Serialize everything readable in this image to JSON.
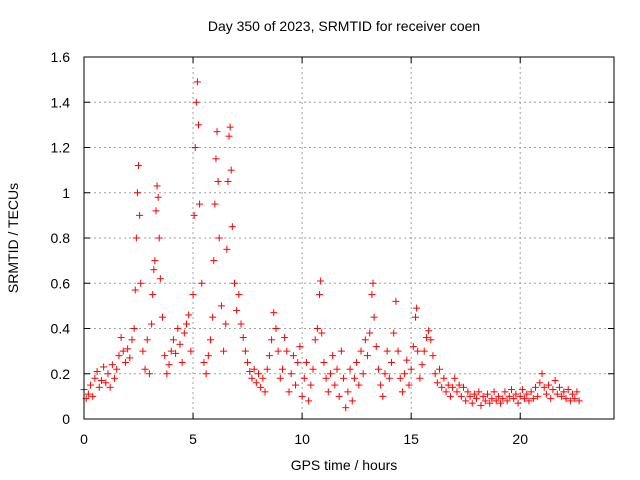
{
  "chart_data": {
    "type": "scatter",
    "title": "Day 350 of 2023, SRMTID for receiver coen",
    "xlabel": "GPS time / hours",
    "ylabel": "SRMTID / TECUs",
    "xlim": [
      0,
      24.3
    ],
    "ylim": [
      0,
      1.6
    ],
    "xticks": [
      0,
      5,
      10,
      15,
      20
    ],
    "xtick_labels": [
      "0",
      "5",
      "10",
      "15",
      "20"
    ],
    "yticks": [
      0,
      0.2,
      0.4,
      0.6,
      0.8,
      1.0,
      1.2,
      1.4,
      1.6
    ],
    "ytick_labels": [
      "0",
      "0.2",
      "0.4",
      "0.6",
      "0.8",
      "1",
      "1.2",
      "1.4",
      "1.6"
    ],
    "grid": true,
    "marker": "+",
    "color": "#ff0000",
    "series": [
      {
        "name": "SRMTID",
        "points": [
          [
            0.0,
            0.13
          ],
          [
            0.1,
            0.09
          ],
          [
            0.2,
            0.11
          ],
          [
            0.3,
            0.15
          ],
          [
            0.4,
            0.1
          ],
          [
            0.5,
            0.18
          ],
          [
            0.6,
            0.21
          ],
          [
            0.7,
            0.14
          ],
          [
            0.8,
            0.17
          ],
          [
            0.9,
            0.23
          ],
          [
            1.0,
            0.16
          ],
          [
            1.1,
            0.2
          ],
          [
            1.2,
            0.14
          ],
          [
            1.3,
            0.24
          ],
          [
            1.4,
            0.18
          ],
          [
            1.5,
            0.22
          ],
          [
            1.6,
            0.28
          ],
          [
            1.7,
            0.36
          ],
          [
            1.8,
            0.3
          ],
          [
            1.9,
            0.25
          ],
          [
            2.0,
            0.31
          ],
          [
            2.1,
            0.27
          ],
          [
            2.2,
            0.35
          ],
          [
            2.3,
            0.4
          ],
          [
            2.35,
            0.57
          ],
          [
            2.4,
            0.8
          ],
          [
            2.45,
            1.0
          ],
          [
            2.5,
            1.12
          ],
          [
            2.55,
            0.9
          ],
          [
            2.6,
            0.6
          ],
          [
            2.7,
            0.3
          ],
          [
            2.8,
            0.22
          ],
          [
            2.9,
            0.35
          ],
          [
            3.0,
            0.2
          ],
          [
            3.1,
            0.42
          ],
          [
            3.15,
            0.55
          ],
          [
            3.2,
            0.66
          ],
          [
            3.25,
            0.7
          ],
          [
            3.3,
            0.92
          ],
          [
            3.35,
            1.03
          ],
          [
            3.4,
            0.98
          ],
          [
            3.45,
            0.8
          ],
          [
            3.5,
            0.62
          ],
          [
            3.6,
            0.45
          ],
          [
            3.7,
            0.28
          ],
          [
            3.8,
            0.2
          ],
          [
            3.9,
            0.24
          ],
          [
            4.0,
            0.3
          ],
          [
            4.1,
            0.35
          ],
          [
            4.2,
            0.29
          ],
          [
            4.3,
            0.4
          ],
          [
            4.4,
            0.33
          ],
          [
            4.5,
            0.25
          ],
          [
            4.6,
            0.38
          ],
          [
            4.7,
            0.42
          ],
          [
            4.8,
            0.46
          ],
          [
            4.9,
            0.3
          ],
          [
            5.0,
            0.55
          ],
          [
            5.05,
            0.9
          ],
          [
            5.1,
            1.2
          ],
          [
            5.15,
            1.4
          ],
          [
            5.2,
            1.49
          ],
          [
            5.25,
            1.3
          ],
          [
            5.3,
            0.95
          ],
          [
            5.4,
            0.6
          ],
          [
            5.5,
            0.25
          ],
          [
            5.6,
            0.2
          ],
          [
            5.7,
            0.28
          ],
          [
            5.8,
            0.35
          ],
          [
            5.9,
            0.45
          ],
          [
            5.95,
            0.7
          ],
          [
            6.0,
            0.95
          ],
          [
            6.05,
            1.15
          ],
          [
            6.1,
            1.27
          ],
          [
            6.15,
            1.05
          ],
          [
            6.2,
            0.8
          ],
          [
            6.3,
            0.5
          ],
          [
            6.4,
            0.3
          ],
          [
            6.5,
            0.42
          ],
          [
            6.55,
            0.75
          ],
          [
            6.6,
            1.05
          ],
          [
            6.65,
            1.25
          ],
          [
            6.7,
            1.29
          ],
          [
            6.75,
            1.1
          ],
          [
            6.8,
            0.85
          ],
          [
            6.9,
            0.6
          ],
          [
            7.0,
            0.48
          ],
          [
            7.1,
            0.55
          ],
          [
            7.2,
            0.42
          ],
          [
            7.3,
            0.36
          ],
          [
            7.4,
            0.3
          ],
          [
            7.5,
            0.25
          ],
          [
            7.6,
            0.21
          ],
          [
            7.7,
            0.18
          ],
          [
            7.8,
            0.22
          ],
          [
            7.9,
            0.16
          ],
          [
            8.0,
            0.2
          ],
          [
            8.1,
            0.14
          ],
          [
            8.2,
            0.18
          ],
          [
            8.3,
            0.12
          ],
          [
            8.4,
            0.22
          ],
          [
            8.5,
            0.28
          ],
          [
            8.6,
            0.35
          ],
          [
            8.7,
            0.47
          ],
          [
            8.8,
            0.4
          ],
          [
            8.9,
            0.3
          ],
          [
            9.0,
            0.18
          ],
          [
            9.1,
            0.22
          ],
          [
            9.2,
            0.36
          ],
          [
            9.3,
            0.3
          ],
          [
            9.4,
            0.12
          ],
          [
            9.5,
            0.2
          ],
          [
            9.6,
            0.28
          ],
          [
            9.7,
            0.15
          ],
          [
            9.8,
            0.25
          ],
          [
            9.9,
            0.32
          ],
          [
            10.0,
            0.1
          ],
          [
            10.1,
            0.18
          ],
          [
            10.2,
            0.25
          ],
          [
            10.3,
            0.08
          ],
          [
            10.4,
            0.15
          ],
          [
            10.5,
            0.22
          ],
          [
            10.6,
            0.35
          ],
          [
            10.7,
            0.4
          ],
          [
            10.8,
            0.55
          ],
          [
            10.85,
            0.61
          ],
          [
            10.9,
            0.38
          ],
          [
            11.0,
            0.25
          ],
          [
            11.1,
            0.18
          ],
          [
            11.2,
            0.12
          ],
          [
            11.3,
            0.2
          ],
          [
            11.4,
            0.28
          ],
          [
            11.5,
            0.15
          ],
          [
            11.6,
            0.22
          ],
          [
            11.7,
            0.1
          ],
          [
            11.8,
            0.3
          ],
          [
            11.9,
            0.18
          ],
          [
            12.0,
            0.05
          ],
          [
            12.1,
            0.12
          ],
          [
            12.2,
            0.22
          ],
          [
            12.3,
            0.08
          ],
          [
            12.4,
            0.18
          ],
          [
            12.5,
            0.25
          ],
          [
            12.6,
            0.15
          ],
          [
            12.7,
            0.3
          ],
          [
            12.8,
            0.2
          ],
          [
            12.9,
            0.35
          ],
          [
            13.0,
            0.28
          ],
          [
            13.1,
            0.38
          ],
          [
            13.2,
            0.55
          ],
          [
            13.25,
            0.6
          ],
          [
            13.3,
            0.45
          ],
          [
            13.4,
            0.32
          ],
          [
            13.5,
            0.22
          ],
          [
            13.6,
            0.15
          ],
          [
            13.7,
            0.1
          ],
          [
            13.8,
            0.2
          ],
          [
            13.9,
            0.3
          ],
          [
            14.0,
            0.18
          ],
          [
            14.1,
            0.25
          ],
          [
            14.2,
            0.38
          ],
          [
            14.3,
            0.52
          ],
          [
            14.4,
            0.3
          ],
          [
            14.5,
            0.18
          ],
          [
            14.6,
            0.12
          ],
          [
            14.7,
            0.2
          ],
          [
            14.8,
            0.26
          ],
          [
            14.9,
            0.15
          ],
          [
            15.0,
            0.22
          ],
          [
            15.1,
            0.32
          ],
          [
            15.2,
            0.45
          ],
          [
            15.25,
            0.49
          ],
          [
            15.3,
            0.3
          ],
          [
            15.4,
            0.18
          ],
          [
            15.5,
            0.24
          ],
          [
            15.6,
            0.3
          ],
          [
            15.7,
            0.36
          ],
          [
            15.8,
            0.39
          ],
          [
            15.9,
            0.35
          ],
          [
            16.0,
            0.28
          ],
          [
            16.1,
            0.2
          ],
          [
            16.2,
            0.16
          ],
          [
            16.3,
            0.22
          ],
          [
            16.4,
            0.14
          ],
          [
            16.5,
            0.18
          ],
          [
            16.6,
            0.12
          ],
          [
            16.7,
            0.15
          ],
          [
            16.8,
            0.1
          ],
          [
            16.9,
            0.14
          ],
          [
            17.0,
            0.18
          ],
          [
            17.1,
            0.12
          ],
          [
            17.2,
            0.15
          ],
          [
            17.3,
            0.1
          ],
          [
            17.4,
            0.14
          ],
          [
            17.5,
            0.08
          ],
          [
            17.6,
            0.12
          ],
          [
            17.7,
            0.1
          ],
          [
            17.8,
            0.07
          ],
          [
            17.9,
            0.11
          ],
          [
            18.0,
            0.09
          ],
          [
            18.1,
            0.12
          ],
          [
            18.2,
            0.06
          ],
          [
            18.3,
            0.1
          ],
          [
            18.4,
            0.08
          ],
          [
            18.5,
            0.11
          ],
          [
            18.6,
            0.07
          ],
          [
            18.7,
            0.09
          ],
          [
            18.8,
            0.12
          ],
          [
            18.9,
            0.08
          ],
          [
            19.0,
            0.1
          ],
          [
            19.1,
            0.07
          ],
          [
            19.2,
            0.09
          ],
          [
            19.3,
            0.12
          ],
          [
            19.4,
            0.08
          ],
          [
            19.5,
            0.1
          ],
          [
            19.6,
            0.13
          ],
          [
            19.7,
            0.09
          ],
          [
            19.8,
            0.11
          ],
          [
            19.9,
            0.07
          ],
          [
            20.0,
            0.1
          ],
          [
            20.1,
            0.13
          ],
          [
            20.2,
            0.09
          ],
          [
            20.3,
            0.11
          ],
          [
            20.4,
            0.08
          ],
          [
            20.5,
            0.12
          ],
          [
            20.6,
            0.09
          ],
          [
            20.7,
            0.14
          ],
          [
            20.8,
            0.1
          ],
          [
            20.9,
            0.16
          ],
          [
            21.0,
            0.2
          ],
          [
            21.1,
            0.14
          ],
          [
            21.2,
            0.11
          ],
          [
            21.3,
            0.15
          ],
          [
            21.4,
            0.09
          ],
          [
            21.5,
            0.13
          ],
          [
            21.6,
            0.17
          ],
          [
            21.7,
            0.11
          ],
          [
            21.8,
            0.14
          ],
          [
            21.9,
            0.1
          ],
          [
            22.0,
            0.12
          ],
          [
            22.1,
            0.09
          ],
          [
            22.2,
            0.13
          ],
          [
            22.3,
            0.08
          ],
          [
            22.4,
            0.11
          ],
          [
            22.5,
            0.09
          ],
          [
            22.6,
            0.12
          ],
          [
            22.7,
            0.08
          ]
        ]
      }
    ]
  }
}
